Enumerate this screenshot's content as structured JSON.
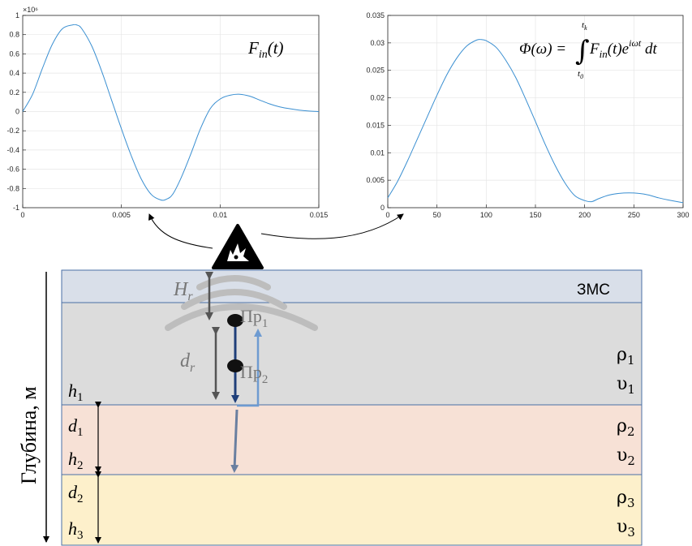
{
  "chart_data": [
    {
      "type": "line",
      "title": "",
      "annotation": "F_in(t)",
      "xlabel": "",
      "ylabel": "",
      "xlim": [
        0,
        0.015
      ],
      "ylim": [
        -1,
        1
      ],
      "y_multiplier": "×10⁶",
      "x_ticks": [
        "0",
        "0.005",
        "0.01",
        "0.015"
      ],
      "y_ticks": [
        "1",
        "0.8",
        "0.6",
        "0.4",
        "0.2",
        "0",
        "-0.2",
        "-0.4",
        "-0.6",
        "-0.8",
        "-1"
      ],
      "grid": true,
      "series": [
        {
          "x": [
            0,
            0.0005,
            0.001,
            0.0015,
            0.002,
            0.0025,
            0.00275,
            0.003,
            0.0035,
            0.004,
            0.0045,
            0.005,
            0.0055,
            0.006,
            0.0065,
            0.007,
            0.0073,
            0.0076,
            0.008,
            0.0085,
            0.009,
            0.0095,
            0.01,
            0.0105,
            0.011,
            0.0115,
            0.012,
            0.0125,
            0.013,
            0.0135,
            0.014,
            0.0145,
            0.015
          ],
          "y": [
            0,
            0.18,
            0.45,
            0.7,
            0.86,
            0.9,
            0.9,
            0.86,
            0.68,
            0.42,
            0.12,
            -0.18,
            -0.46,
            -0.7,
            -0.86,
            -0.92,
            -0.91,
            -0.86,
            -0.7,
            -0.45,
            -0.18,
            0.03,
            0.13,
            0.17,
            0.18,
            0.16,
            0.12,
            0.08,
            0.05,
            0.03,
            0.015,
            0.005,
            0
          ]
        }
      ]
    },
    {
      "type": "line",
      "title": "",
      "xlabel": "",
      "ylabel": "",
      "xlim": [
        0,
        300
      ],
      "ylim": [
        0,
        0.035
      ],
      "x_ticks": [
        "0",
        "50",
        "100",
        "150",
        "200",
        "250",
        "300"
      ],
      "y_ticks": [
        "0.035",
        "0.03",
        "0.025",
        "0.02",
        "0.015",
        "0.01",
        "0.005",
        "0"
      ],
      "grid": true,
      "series": [
        {
          "x": [
            0,
            10,
            20,
            30,
            40,
            50,
            60,
            70,
            80,
            90,
            95,
            100,
            110,
            120,
            130,
            140,
            150,
            160,
            170,
            180,
            190,
            200,
            207,
            215,
            225,
            235,
            245,
            255,
            265,
            275,
            285,
            300
          ],
          "y": [
            0.0018,
            0.0048,
            0.0085,
            0.0125,
            0.0165,
            0.0205,
            0.0242,
            0.0272,
            0.0294,
            0.0305,
            0.0306,
            0.0304,
            0.0292,
            0.0268,
            0.0237,
            0.0198,
            0.0157,
            0.0115,
            0.0077,
            0.0045,
            0.0022,
            0.0013,
            0.0011,
            0.0017,
            0.0023,
            0.0026,
            0.0027,
            0.0026,
            0.0023,
            0.0018,
            0.0014,
            0.0009
          ]
        }
      ]
    }
  ],
  "diagram": {
    "depth_axis_label": "Глубина, м",
    "surface_layer_label": "ЗМС",
    "receiver_prefix": "Пр",
    "receivers": [
      "1",
      "2"
    ],
    "Hr": {
      "base": "H",
      "sub": "r"
    },
    "dr": {
      "base": "d",
      "sub": "r"
    },
    "layers": [
      {
        "h_base": "h",
        "h_sub": "1",
        "rho_sub": "1",
        "upsilon_sub": "1",
        "color": "#dcdcdc"
      },
      {
        "d_base": "d",
        "d_sub": "1",
        "h_base": "h",
        "h_sub": "2",
        "rho_sub": "2",
        "upsilon_sub": "2",
        "color": "#f7e1d6"
      },
      {
        "d_base": "d",
        "d_sub": "2",
        "h_base": "h",
        "h_sub": "3",
        "rho_sub": "3",
        "upsilon_sub": "3",
        "color": "#fdf0cb"
      }
    ],
    "surface_color": "#d9dfe9",
    "rho_symbol": "ρ",
    "upsilon_symbol": "υ"
  },
  "colors": {
    "plot_line": "#3a8fd1",
    "layer_border": "#4a6fa5",
    "down_arrow": "#1f3f7a",
    "up_arrow": "#6e9bd1"
  }
}
